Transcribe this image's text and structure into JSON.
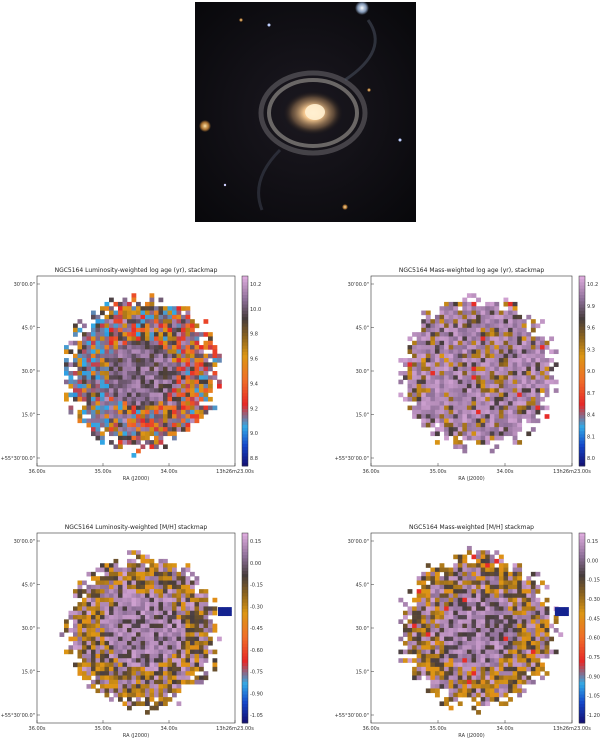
{
  "chart_data": [
    {
      "type": "heatmap",
      "title": "NGC5164 Luminosity-weighted log age (yr), stackmap",
      "xlabel": "RA (J2000)",
      "ylabel": "",
      "xticks": [
        "36.00s",
        "35.00s",
        "34.00s",
        "13h26m23.00s"
      ],
      "yticks": [
        "30’00.0\"",
        "45.0\"",
        "30.0\"",
        "15.0\"",
        "+55°30’00.0\""
      ],
      "colorbar": {
        "ticks": [
          "10.2",
          "10.0",
          "9.8",
          "9.6",
          "9.4",
          "9.2",
          "9.0",
          "8.8"
        ],
        "min": 8.8,
        "max": 10.3,
        "colormap": "diverging-blue-red-gold-purple"
      }
    },
    {
      "type": "heatmap",
      "title": "NGC5164 Mass-weighted log age (yr), stackmap",
      "xlabel": "RA (J2000)",
      "ylabel": "",
      "xticks": [
        "36.00s",
        "35.00s",
        "34.00s",
        "13h26m23.00s"
      ],
      "yticks": [
        "30’00.0\"",
        "45.0\"",
        "30.0\"",
        "15.0\"",
        "+55°30’00.0\""
      ],
      "colorbar": {
        "ticks": [
          "10.2",
          "9.9",
          "9.6",
          "9.3",
          "9.0",
          "8.7",
          "8.4",
          "8.1",
          "8.0"
        ],
        "min": 8.0,
        "max": 10.3,
        "colormap": "diverging-blue-red-gold-purple"
      }
    },
    {
      "type": "heatmap",
      "title": "NGC5164 Luminosity-weighted [M/H] stackmap",
      "xlabel": "RA (J2000)",
      "ylabel": "",
      "xticks": [
        "36.00s",
        "35.00s",
        "34.00s",
        "13h26m23.00s"
      ],
      "yticks": [
        "30’00.0\"",
        "45.0\"",
        "30.0\"",
        "15.0\"",
        "+55°30’00.0\""
      ],
      "colorbar": {
        "ticks": [
          "0.15",
          "0.00",
          "-0.15",
          "-0.30",
          "-0.45",
          "-0.60",
          "-0.75",
          "-0.90",
          "-1.05"
        ],
        "min": -1.1,
        "max": 0.2,
        "colormap": "diverging-blue-red-gold-purple"
      }
    },
    {
      "type": "heatmap",
      "title": "NGC5164 Mass-weighted [M/H] stackmap",
      "xlabel": "RA (J2000)",
      "ylabel": "",
      "xticks": [
        "36.00s",
        "35.00s",
        "34.00s",
        "13h26m23.00s"
      ],
      "yticks": [
        "30’00.0\"",
        "45.0\"",
        "30.0\"",
        "15.0\"",
        "+55°30’00.0\""
      ],
      "colorbar": {
        "ticks": [
          "0.15",
          "0.00",
          "-0.15",
          "-0.30",
          "-0.45",
          "-0.60",
          "-0.75",
          "-0.90",
          "-1.05",
          "-1.20"
        ],
        "min": -1.25,
        "max": 0.2,
        "colormap": "diverging-blue-red-gold-purple"
      }
    }
  ],
  "galaxy_image": {
    "name": "galaxy-optical-image",
    "description_colors": {
      "bg": "#0b0b0f",
      "core": "#f2c38a",
      "ring": "#a89a8c"
    }
  }
}
